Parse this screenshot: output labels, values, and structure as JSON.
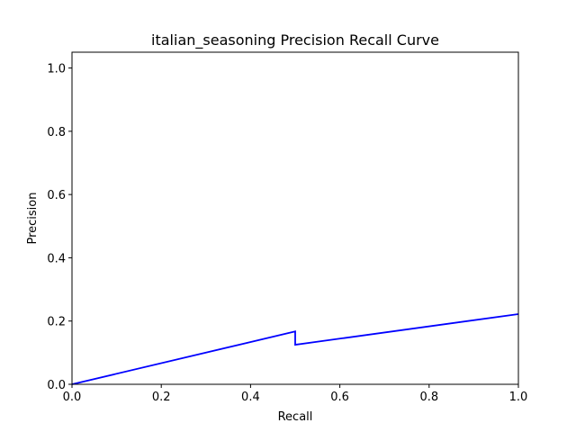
{
  "chart_data": {
    "type": "line",
    "title": "italian_seasoning Precision Recall Curve",
    "xlabel": "Recall",
    "ylabel": "Precision",
    "xlim": [
      0.0,
      1.0
    ],
    "ylim": [
      0.0,
      1.05
    ],
    "xticks": [
      0.0,
      0.2,
      0.4,
      0.6,
      0.8,
      1.0
    ],
    "yticks": [
      0.0,
      0.2,
      0.4,
      0.6,
      0.8,
      1.0
    ],
    "xtick_labels": [
      "0.0",
      "0.2",
      "0.4",
      "0.6",
      "0.8",
      "1.0"
    ],
    "ytick_labels": [
      "0.0",
      "0.2",
      "0.4",
      "0.6",
      "0.8",
      "1.0"
    ],
    "grid": false,
    "legend": "none",
    "series": [
      {
        "color": "#0000ff",
        "x": [
          0.0,
          0.5,
          0.5,
          1.0
        ],
        "y": [
          0.0,
          0.167,
          0.125,
          0.222
        ]
      }
    ]
  }
}
